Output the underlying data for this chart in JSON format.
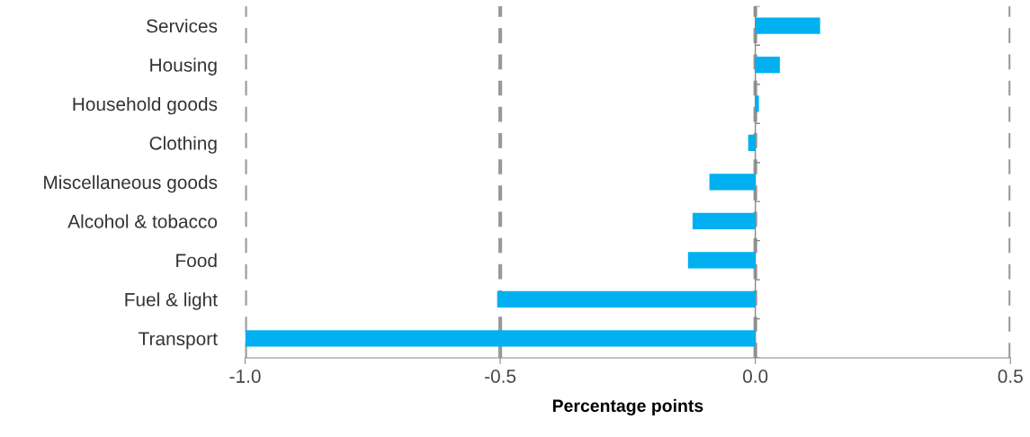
{
  "chart_data": {
    "type": "bar",
    "orientation": "horizontal",
    "xlabel": "Percentage points",
    "categories": [
      "Services",
      "Housing",
      "Household goods",
      "Clothing",
      "Miscellaneous goods",
      "Alcohol & tobacco",
      "Food",
      "Fuel & light",
      "Transport"
    ],
    "values": [
      0.127,
      0.048,
      0.007,
      -0.014,
      -0.09,
      -0.123,
      -0.132,
      -0.506,
      -1.0
    ],
    "color": "#00b0f0",
    "xlim": [
      -1.0,
      0.5
    ],
    "xticks": [
      {
        "value": -1.0,
        "label": "-1.0"
      },
      {
        "value": -0.5,
        "label": "-0.5"
      },
      {
        "value": 0.0,
        "label": "0.0"
      },
      {
        "value": 0.5,
        "label": "0.5"
      }
    ],
    "grid": "x"
  }
}
